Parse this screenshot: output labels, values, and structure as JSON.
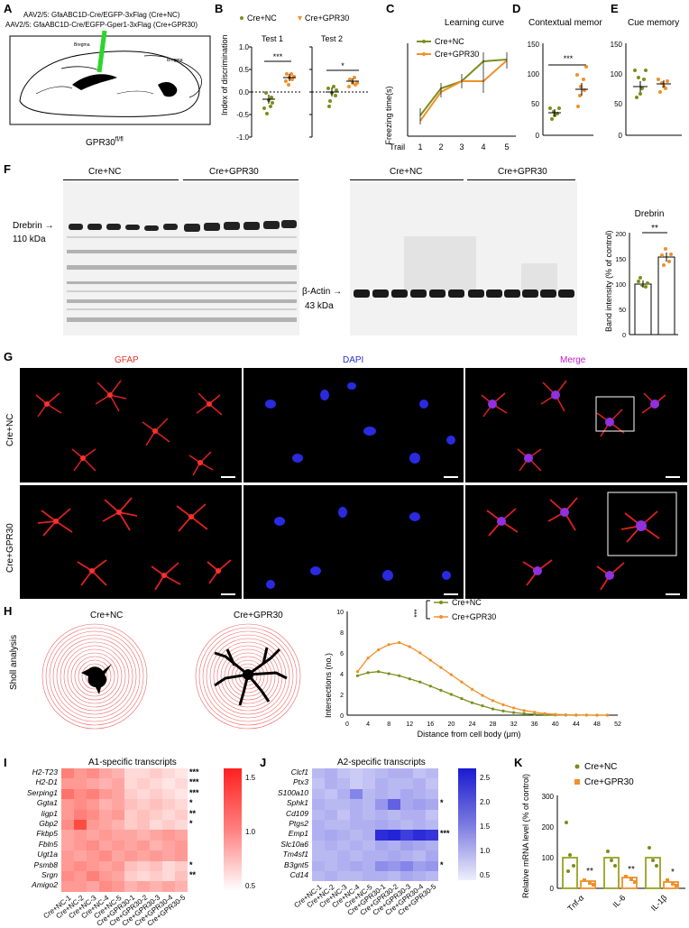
{
  "panels": {
    "A": "A",
    "B": "B",
    "C": "C",
    "D": "D",
    "E": "E",
    "F": "F",
    "G": "G",
    "H": "H",
    "I": "I",
    "J": "J",
    "K": "K"
  },
  "colors": {
    "green": "#7a8f1e",
    "orange": "#f0902a",
    "red": "#e8332a",
    "blue": "#2a2ad0",
    "purple": "#c020c0"
  },
  "A": {
    "line1": "AAV2/5: GfaABC1D-Cre/EGFP-3xFlag (Cre+NC)",
    "line2": "AAV2/5: GfaABC1D-Cre/EGFP-Gper1-3xFlag (Cre+GPR30)",
    "bregma1": "Bregma",
    "bregma2": "Bregma",
    "genotype": "GPR30fl/fl"
  },
  "B": {
    "legend": [
      "Cre+NC",
      "Cre+GPR30"
    ],
    "ylabel": "Index of discrimination",
    "test1": "Test 1",
    "test2": "Test 2",
    "sig1": "***",
    "sig2": "*",
    "yticks": [
      "1.0",
      "0.5",
      "0.0",
      "-0.5",
      "-1.0"
    ]
  },
  "C": {
    "title": "Learning curve",
    "legend": [
      "Cre+NC",
      "Cre+GPR30"
    ],
    "ylabel": "Freezing time(s)",
    "xlabel": "Trail",
    "xticks": [
      "1",
      "2",
      "3",
      "4",
      "5"
    ],
    "yticks": [
      "0",
      "10",
      "20",
      "30",
      "40"
    ]
  },
  "D": {
    "title": "Contextual memory",
    "sig": "***",
    "yticks": [
      "0",
      "50",
      "100",
      "150"
    ]
  },
  "E": {
    "title": "Cue memory",
    "yticks": [
      "0",
      "50",
      "100",
      "150"
    ]
  },
  "F": {
    "group1": "Cre+NC",
    "group2": "Cre+GPR30",
    "group3": "Cre+NC",
    "group4": "Cre+GPR30",
    "drebrin": "Drebrin",
    "drebrin_kda": "110 kDa",
    "actin": "β-Actin",
    "actin_kda": "43 kDa",
    "chart_title": "Drebrin",
    "ylabel": "Band intensity (% of control)",
    "sig": "**",
    "yticks": [
      "0",
      "50",
      "100",
      "150",
      "200"
    ]
  },
  "G": {
    "col1": "GFAP",
    "col2": "DAPI",
    "col3": "Merge",
    "row1": "Cre+NC",
    "row2": "Cre+GPR30"
  },
  "H": {
    "ylabel_side": "Sholl analysis",
    "label1": "Cre+NC",
    "label2": "Cre+GPR30",
    "legend": [
      "Cre+NC",
      "Cre+GPR30"
    ],
    "sig": "***",
    "ylabel": "Intersections (no.)",
    "xlabel": "Distance from cell body (μm)",
    "xticks": [
      "0",
      "4",
      "8",
      "12",
      "16",
      "20",
      "24",
      "28",
      "32",
      "36",
      "40",
      "44",
      "48",
      "52"
    ],
    "yticks": [
      "0",
      "2",
      "4",
      "6",
      "8",
      "10"
    ]
  },
  "I": {
    "title": "A1-specific transcripts",
    "genes": [
      "H2-T23",
      "H2-D1",
      "Serping1",
      "Ggta1",
      "Iigp1",
      "Gbp2",
      "Fkbp5",
      "Fbln5",
      "Ugt1a",
      "Psmb8",
      "Srgn",
      "Amigo2"
    ],
    "sig": [
      "***",
      "***",
      "***",
      "*",
      "**",
      "*",
      "",
      "",
      "",
      "*",
      "**",
      ""
    ],
    "samples": [
      "Cre+NC-1",
      "Cre+NC-2",
      "Cre+NC-3",
      "Cre+NC-4",
      "Cre+NC-5",
      "Cre+GPR30-1",
      "Cre+GPR30-2",
      "Cre+GPR30-3",
      "Cre+GPR30-4",
      "Cre+GPR30-5"
    ],
    "scale": [
      "1.5",
      "1.0",
      "0.5"
    ]
  },
  "J": {
    "title": "A2-specific transcripts",
    "genes": [
      "Clcf1",
      "Ptx3",
      "S100a10",
      "Sphk1",
      "Cd109",
      "Ptgs2",
      "Emp1",
      "Slc10a6",
      "Tm4sf1",
      "B3gnt5",
      "Cd14"
    ],
    "sig": [
      "",
      "",
      "",
      "*",
      "",
      "",
      "***",
      "",
      "",
      "*",
      ""
    ],
    "samples": [
      "Cre+NC-1",
      "Cre+NC-2",
      "Cre+NC-3",
      "Cre+NC-4",
      "Cre+NC-5",
      "Cre+GPR30-1",
      "Cre+GPR30-2",
      "Cre+GPR30-3",
      "Cre+GPR30-4",
      "Cre+GPR30-5"
    ],
    "scale": [
      "2.5",
      "2.0",
      "1.5",
      "1.0",
      "0.5"
    ]
  },
  "K": {
    "legend": [
      "Cre+NC",
      "Cre+GPR30"
    ],
    "ylabel": "Relative mRNA level (% of control)",
    "xticks": [
      "Tnf-α",
      "IL-6",
      "IL-1β"
    ],
    "sig": [
      "**",
      "**",
      "*"
    ],
    "yticks": [
      "0",
      "100",
      "200",
      "300"
    ]
  },
  "chart_data": [
    {
      "type": "scatter",
      "panel": "B-Test1",
      "categories": [
        "Cre+NC",
        "Cre+GPR30"
      ],
      "values": [
        -0.15,
        0.35
      ],
      "ylim": [
        -1,
        1
      ],
      "title": "Test 1",
      "ylabel": "Index of discrimination"
    },
    {
      "type": "scatter",
      "panel": "B-Test2",
      "categories": [
        "Cre+NC",
        "Cre+GPR30"
      ],
      "values": [
        0.0,
        0.25
      ],
      "ylim": [
        -1,
        1
      ],
      "title": "Test 2"
    },
    {
      "type": "line",
      "panel": "C",
      "title": "Learning curve",
      "x": [
        1,
        2,
        3,
        4,
        5
      ],
      "series": [
        {
          "name": "Cre+NC",
          "values": [
            8,
            20,
            23,
            30,
            31
          ]
        },
        {
          "name": "Cre+GPR30",
          "values": [
            6,
            18,
            23,
            23,
            31
          ]
        }
      ],
      "ylim": [
        0,
        40
      ],
      "xlabel": "Trail",
      "ylabel": "Freezing time(s)"
    },
    {
      "type": "scatter",
      "panel": "D",
      "title": "Contextual memory",
      "categories": [
        "Cre+NC",
        "Cre+GPR30"
      ],
      "values": [
        38,
        76
      ],
      "ylim": [
        0,
        150
      ]
    },
    {
      "type": "scatter",
      "panel": "E",
      "title": "Cue memory",
      "categories": [
        "Cre+NC",
        "Cre+GPR30"
      ],
      "values": [
        80,
        87
      ],
      "ylim": [
        0,
        150
      ]
    },
    {
      "type": "bar",
      "panel": "F",
      "title": "Drebrin",
      "categories": [
        "Cre+NC",
        "Cre+GPR30"
      ],
      "values": [
        100,
        153
      ],
      "ylim": [
        0,
        200
      ],
      "ylabel": "Band intensity (% of control)"
    },
    {
      "type": "line",
      "panel": "H",
      "x": [
        2,
        4,
        6,
        8,
        10,
        12,
        14,
        16,
        18,
        20,
        22,
        24,
        26,
        28,
        30,
        32,
        34,
        36,
        38,
        40,
        42,
        44,
        46,
        48,
        50
      ],
      "series": [
        {
          "name": "Cre+NC",
          "values": [
            3.8,
            4.1,
            4.2,
            4.0,
            3.8,
            3.5,
            3.2,
            2.8,
            2.4,
            2.0,
            1.6,
            1.2,
            0.9,
            0.6,
            0.4,
            0.25,
            0.15,
            0.08,
            0.05,
            0.02,
            0.01,
            0,
            0,
            0,
            0
          ]
        },
        {
          "name": "Cre+GPR30",
          "values": [
            4.2,
            5.5,
            6.3,
            6.8,
            7.0,
            6.6,
            6.0,
            5.3,
            4.6,
            3.9,
            3.2,
            2.5,
            1.9,
            1.4,
            1.0,
            0.7,
            0.45,
            0.28,
            0.15,
            0.08,
            0.04,
            0.02,
            0.01,
            0,
            0
          ]
        }
      ],
      "xlabel": "Distance from cell body (μm)",
      "ylabel": "Intersections (no.)",
      "ylim": [
        0,
        10
      ]
    },
    {
      "type": "bar",
      "panel": "K",
      "categories": [
        "Tnf-α",
        "IL-6",
        "IL-1β"
      ],
      "series": [
        {
          "name": "Cre+NC",
          "values": [
            100,
            100,
            100
          ]
        },
        {
          "name": "Cre+GPR30",
          "values": [
            25,
            38,
            20
          ]
        }
      ],
      "ylim": [
        0,
        300
      ],
      "ylabel": "Relative mRNA level (% of control)"
    }
  ]
}
